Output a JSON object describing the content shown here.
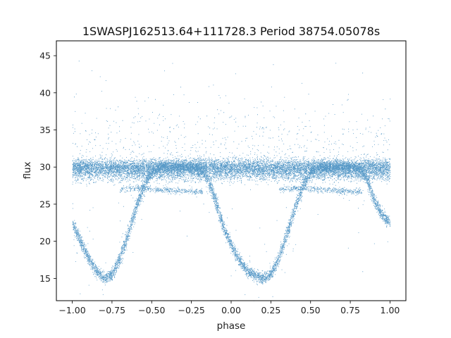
{
  "chart_data": {
    "type": "scatter",
    "title": "1SWASPJ162513.64+111728.3 Period 38754.05078s",
    "xlabel": "phase",
    "ylabel": "flux",
    "xlim": [
      -1.1,
      1.1
    ],
    "ylim": [
      12.0,
      47.0
    ],
    "xticks": [
      -1.0,
      -0.75,
      -0.5,
      -0.25,
      0.0,
      0.25,
      0.5,
      0.75,
      1.0
    ],
    "xtick_labels": [
      "−1.00",
      "−0.75",
      "−0.50",
      "−0.25",
      "0.00",
      "0.25",
      "0.50",
      "0.75",
      "1.00"
    ],
    "yticks": [
      15,
      20,
      25,
      30,
      35,
      40,
      45
    ],
    "ytick_labels": [
      "15",
      "20",
      "25",
      "30",
      "35",
      "40",
      "45"
    ],
    "grid": false,
    "point_color": "#1f77b4",
    "series": [
      {
        "description": "phase-folded light curve, main (eclipsing) component",
        "trend_points": [
          [
            -1.0,
            22.5
          ],
          [
            -0.95,
            20.0
          ],
          [
            -0.9,
            17.8
          ],
          [
            -0.85,
            16.0
          ],
          [
            -0.8,
            15.0
          ],
          [
            -0.75,
            15.6
          ],
          [
            -0.7,
            17.8
          ],
          [
            -0.65,
            21.0
          ],
          [
            -0.6,
            24.5
          ],
          [
            -0.55,
            27.5
          ],
          [
            -0.5,
            29.4
          ],
          [
            -0.45,
            30.0
          ],
          [
            -0.3,
            30.1
          ],
          [
            -0.2,
            29.9
          ],
          [
            -0.15,
            28.5
          ],
          [
            -0.1,
            25.5
          ],
          [
            -0.05,
            22.0
          ],
          [
            0.0,
            19.5
          ],
          [
            0.05,
            17.5
          ],
          [
            0.1,
            16.0
          ],
          [
            0.2,
            15.0
          ],
          [
            0.25,
            15.6
          ],
          [
            0.3,
            17.8
          ],
          [
            0.35,
            21.0
          ],
          [
            0.4,
            24.5
          ],
          [
            0.45,
            27.5
          ],
          [
            0.5,
            29.4
          ],
          [
            0.55,
            30.0
          ],
          [
            0.7,
            30.1
          ],
          [
            0.8,
            29.9
          ],
          [
            0.85,
            28.5
          ],
          [
            0.9,
            25.5
          ],
          [
            0.95,
            23.5
          ],
          [
            1.0,
            22.5
          ]
        ]
      },
      {
        "description": "constant component near flux 30",
        "flux": 30.0
      },
      {
        "description": "secondary track near flux 27",
        "trend_points": [
          [
            -0.7,
            27.0
          ],
          [
            -0.6,
            27.2
          ],
          [
            -0.45,
            27.0
          ],
          [
            -0.3,
            26.8
          ],
          [
            -0.18,
            26.7
          ],
          [
            0.3,
            27.0
          ],
          [
            0.4,
            27.2
          ],
          [
            0.55,
            27.0
          ],
          [
            0.7,
            26.8
          ],
          [
            0.82,
            26.7
          ]
        ]
      }
    ]
  }
}
